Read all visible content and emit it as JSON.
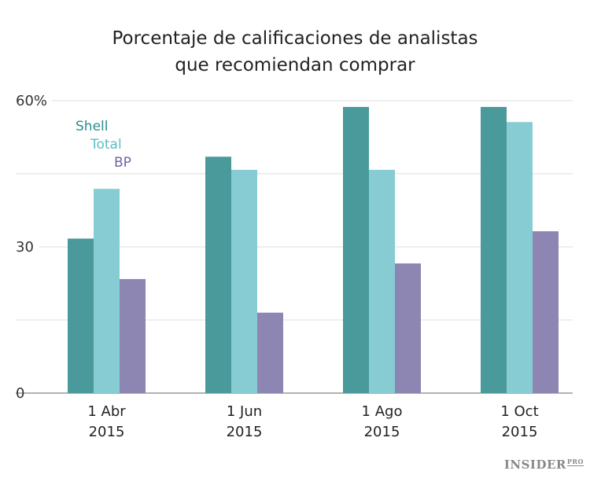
{
  "chart_data": {
    "type": "bar",
    "title": [
      "Porcentaje de calificaciones de analistas",
      "que recomiendan comprar"
    ],
    "categories": [
      [
        "1 Abr",
        "2015"
      ],
      [
        "1 Jun",
        "2015"
      ],
      [
        "1 Ago",
        "2015"
      ],
      [
        "1 Oct",
        "2015"
      ]
    ],
    "series": [
      {
        "name": "Shell",
        "values": [
          31.7,
          48.5,
          58.7,
          58.7
        ],
        "color": "#4a9a9c",
        "label_color": "#2b8c8e"
      },
      {
        "name": "Total",
        "values": [
          41.9,
          45.8,
          45.8,
          55.6
        ],
        "color": "#87cbd3",
        "label_color": "#5dbdc6"
      },
      {
        "name": "BP",
        "values": [
          23.4,
          16.5,
          26.6,
          33.2
        ],
        "color": "#8d86b3",
        "label_color": "#6f63a6"
      }
    ],
    "yticks": [
      {
        "value": 0,
        "label": "0"
      },
      {
        "value": 30,
        "label": "30"
      },
      {
        "value": 60,
        "label": "60%"
      }
    ],
    "gridlines": [
      0,
      15,
      30,
      45,
      60
    ],
    "ylim": [
      0,
      60
    ],
    "xlabel": "",
    "ylabel": "",
    "legend_position": "top-left",
    "grid": true
  },
  "branding": {
    "logo": "INSIDER",
    "logo_suffix": "PRO"
  }
}
